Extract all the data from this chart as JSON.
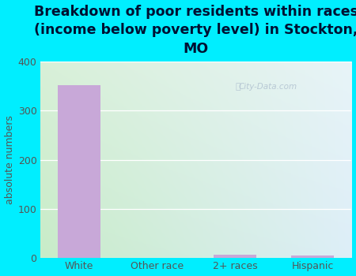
{
  "categories": [
    "White",
    "Other race",
    "2+ races",
    "Hispanic"
  ],
  "values": [
    352,
    0,
    7,
    5
  ],
  "bar_color": "#c8a8d8",
  "title": "Breakdown of poor residents within races\n(income below poverty level) in Stockton,\nMO",
  "ylabel": "absolute numbers",
  "ylim": [
    0,
    400
  ],
  "yticks": [
    0,
    100,
    200,
    300,
    400
  ],
  "bg_cyan": "#00eeff",
  "plot_grad_topleft": "#d8f0d8",
  "plot_grad_topright": "#e8f4f8",
  "plot_grad_bottomleft": "#c8ecc8",
  "plot_grad_bottomright": "#ddeef8",
  "title_fontsize": 12.5,
  "axis_label_fontsize": 9,
  "tick_fontsize": 9,
  "title_color": "#001133",
  "axis_color": "#555555",
  "watermark": "City-Data.com",
  "watermark_color": "#aabbcc"
}
